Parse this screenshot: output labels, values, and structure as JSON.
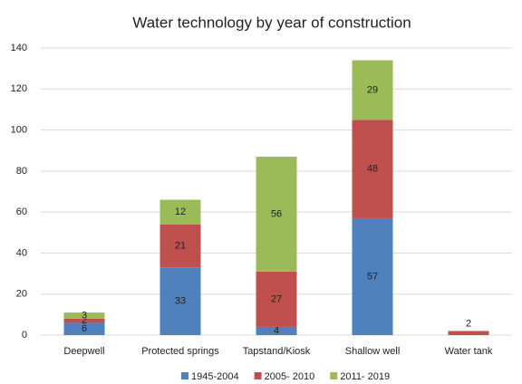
{
  "chart_data": {
    "type": "stacked_bar",
    "title": "Water technology by year of construction",
    "categories": [
      "Deepwell",
      "Protected springs",
      "Tapstand/Kiosk",
      "Shallow well",
      "Water tank"
    ],
    "series": [
      {
        "name": "1945-2004",
        "color": "#4f81bd",
        "values": [
          6,
          33,
          4,
          57,
          null
        ]
      },
      {
        "name": "2005- 2010",
        "color": "#c0504d",
        "values": [
          2,
          21,
          27,
          48,
          2
        ]
      },
      {
        "name": "2011- 2019",
        "color": "#9bbb59",
        "values": [
          3,
          12,
          56,
          29,
          null
        ]
      }
    ],
    "ylim": [
      0,
      140
    ],
    "yticks": [
      0,
      20,
      40,
      60,
      80,
      100,
      120,
      140
    ],
    "grid": true,
    "legend": "bottom"
  }
}
